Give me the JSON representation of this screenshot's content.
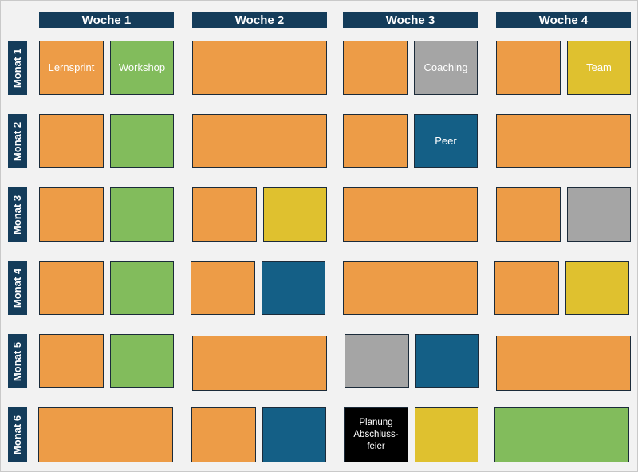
{
  "colors": {
    "header_bg": "#143c5a",
    "orange": "#ed9c47",
    "green": "#82bc5c",
    "gray": "#a5a5a5",
    "yellow": "#dfc12f",
    "blue": "#145f86",
    "black": "#000000"
  },
  "weeks": [
    "Woche 1",
    "Woche 2",
    "Woche 3",
    "Woche 4"
  ],
  "months": [
    "Monat 1",
    "Monat 2",
    "Monat 3",
    "Monat 4",
    "Monat 5",
    "Monat 6"
  ],
  "block_labels": {
    "lernsprint": "Lernsprint",
    "workshop": "Workshop",
    "coaching": "Coaching",
    "team": "Team",
    "peer": "Peer",
    "planung": "Planung Abschluss- feier"
  },
  "schedule": [
    [
      [
        "orange",
        "green"
      ],
      [
        "orange"
      ],
      [
        "orange",
        "gray"
      ],
      [
        "orange",
        "yellow"
      ]
    ],
    [
      [
        "orange",
        "green"
      ],
      [
        "orange"
      ],
      [
        "orange",
        "blue"
      ],
      [
        "orange"
      ]
    ],
    [
      [
        "orange",
        "green"
      ],
      [
        "orange",
        "yellow"
      ],
      [
        "orange"
      ],
      [
        "orange",
        "gray"
      ]
    ],
    [
      [
        "orange",
        "green"
      ],
      [
        "orange",
        "blue"
      ],
      [
        "orange"
      ],
      [
        "orange",
        "yellow"
      ]
    ],
    [
      [
        "orange",
        "green"
      ],
      [
        "orange"
      ],
      [
        "gray",
        "blue"
      ],
      [
        "orange"
      ]
    ],
    [
      [
        "orange"
      ],
      [
        "orange",
        "blue"
      ],
      [
        "black",
        "yellow"
      ],
      [
        "green"
      ]
    ]
  ]
}
